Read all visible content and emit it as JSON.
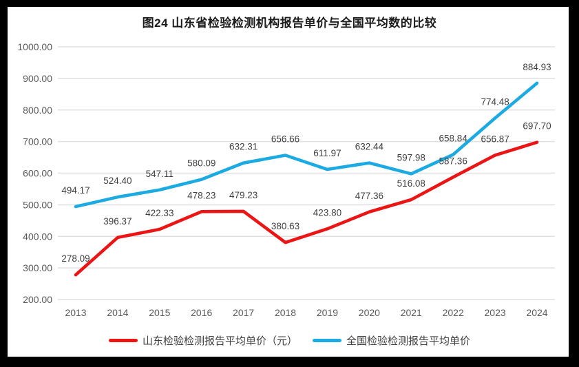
{
  "chart_data": {
    "type": "line",
    "title": "图24  山东省检验检测机构报告单价与全国平均数的比较",
    "categories": [
      "2013",
      "2014",
      "2015",
      "2016",
      "2017",
      "2018",
      "2019",
      "2020",
      "2021",
      "2022",
      "2023",
      "2024"
    ],
    "series": [
      {
        "name": "山东检验检测报告平均单价（元）",
        "color": "#ec1515",
        "values": [
          278.09,
          396.37,
          422.33,
          478.23,
          479.23,
          380.63,
          423.8,
          477.36,
          516.08,
          587.36,
          656.87,
          697.7
        ]
      },
      {
        "name": "全国检验检测报告平均单价",
        "color": "#1caae2",
        "values": [
          494.17,
          524.4,
          547.11,
          580.09,
          632.31,
          656.66,
          611.97,
          632.44,
          597.98,
          658.84,
          774.48,
          884.93
        ]
      }
    ],
    "ylim": [
      200,
      1000
    ],
    "ytick_step": 100,
    "yticks": [
      "1000.00",
      "900.00",
      "800.00",
      "700.00",
      "600.00",
      "500.00",
      "400.00",
      "300.00",
      "200.00"
    ],
    "grid": true,
    "value_labels": true,
    "legend_position": "bottom",
    "style": {
      "grid_color": "#e0e0e0",
      "tick_color": "#595959",
      "data_label_color": "#404040",
      "title_color": "#1a1a1a"
    }
  }
}
